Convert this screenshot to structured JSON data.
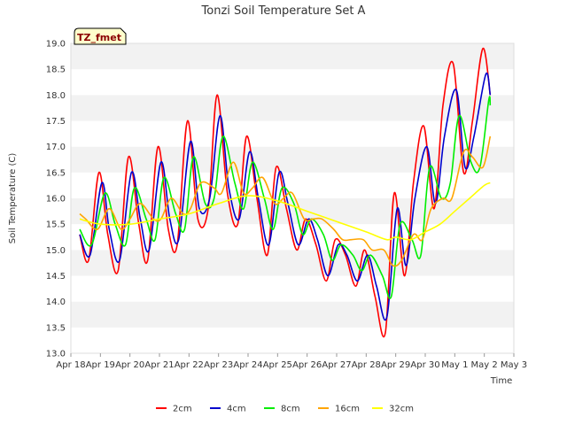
{
  "chart_data": {
    "type": "line",
    "title": "Tonzi Soil Temperature Set A",
    "xlabel": "Time",
    "ylabel": "Soil Temperature (C)",
    "badge": "TZ_fmet",
    "ylim": [
      13.0,
      19.0
    ],
    "yticks": [
      13.0,
      13.5,
      14.0,
      14.5,
      15.0,
      15.5,
      16.0,
      16.5,
      17.0,
      17.5,
      18.0,
      18.5,
      19.0
    ],
    "ytick_labels": [
      "13.0",
      "13.5",
      "14.0",
      "14.5",
      "15.0",
      "15.5",
      "16.0",
      "16.5",
      "17.0",
      "17.5",
      "18.0",
      "18.5",
      "19.0"
    ],
    "xlim": [
      0,
      15
    ],
    "xticks": [
      0,
      1,
      2,
      3,
      4,
      5,
      6,
      7,
      8,
      9,
      10,
      11,
      12,
      13,
      14,
      15
    ],
    "xtick_labels": [
      "Apr 18",
      "Apr 19",
      "Apr 20",
      "Apr 21",
      "Apr 22",
      "Apr 23",
      "Apr 24",
      "Apr 25",
      "Apr 26",
      "Apr 27",
      "Apr 28",
      "Apr 29",
      "Apr 30",
      "May 1",
      "May 2",
      "May 3"
    ],
    "grid": "horizontal bands",
    "legend_position": "bottom-center",
    "series": [
      {
        "name": "2cm",
        "color": "#ff0000",
        "x": [
          0.3,
          0.6,
          0.95,
          1.25,
          1.6,
          1.95,
          2.3,
          2.6,
          2.95,
          3.3,
          3.6,
          3.95,
          4.3,
          4.65,
          4.95,
          5.3,
          5.65,
          5.95,
          6.3,
          6.65,
          6.95,
          7.3,
          7.65,
          7.95,
          8.3,
          8.65,
          8.95,
          9.3,
          9.65,
          9.95,
          10.3,
          10.65,
          10.95,
          11.3,
          11.6,
          11.95,
          12.3,
          12.6,
          12.95,
          13.3,
          13.6,
          13.95,
          14.2
        ],
        "y": [
          15.3,
          14.8,
          16.5,
          15.3,
          14.6,
          16.8,
          15.5,
          14.8,
          17.0,
          15.4,
          15.1,
          17.5,
          15.6,
          15.8,
          18.0,
          16.1,
          15.5,
          17.2,
          16.0,
          14.9,
          16.6,
          15.8,
          15.0,
          15.6,
          15.1,
          14.4,
          15.2,
          14.9,
          14.3,
          15.0,
          14.1,
          13.4,
          16.1,
          14.5,
          16.3,
          17.4,
          15.8,
          17.8,
          18.6,
          16.5,
          17.5,
          18.9,
          18.0
        ]
      },
      {
        "name": "4cm",
        "color": "#0000cc",
        "x": [
          0.3,
          0.65,
          1.05,
          1.3,
          1.65,
          2.05,
          2.35,
          2.65,
          3.05,
          3.35,
          3.65,
          4.05,
          4.35,
          4.7,
          5.05,
          5.35,
          5.7,
          6.05,
          6.35,
          6.7,
          7.05,
          7.35,
          7.7,
          8.05,
          8.35,
          8.7,
          9.05,
          9.35,
          9.7,
          10.05,
          10.35,
          10.7,
          11.05,
          11.35,
          11.65,
          12.05,
          12.35,
          12.65,
          13.05,
          13.35,
          13.65,
          14.05,
          14.2
        ],
        "y": [
          15.3,
          14.9,
          16.3,
          15.4,
          14.8,
          16.5,
          15.6,
          15.0,
          16.7,
          15.6,
          15.2,
          17.1,
          15.8,
          16.0,
          17.6,
          16.2,
          15.6,
          16.9,
          16.0,
          15.1,
          16.5,
          15.9,
          15.1,
          15.6,
          15.2,
          14.5,
          15.1,
          14.9,
          14.4,
          14.9,
          14.3,
          13.7,
          15.8,
          14.7,
          16.0,
          17.0,
          15.9,
          17.2,
          18.1,
          16.6,
          17.2,
          18.4,
          18.0
        ]
      },
      {
        "name": "8cm",
        "color": "#00ee00",
        "x": [
          0.3,
          0.7,
          1.15,
          1.5,
          1.85,
          2.15,
          2.55,
          2.85,
          3.15,
          3.55,
          3.85,
          4.15,
          4.55,
          4.85,
          5.15,
          5.55,
          5.85,
          6.15,
          6.55,
          6.85,
          7.15,
          7.55,
          7.85,
          8.15,
          8.55,
          8.85,
          9.15,
          9.55,
          9.85,
          10.15,
          10.55,
          10.85,
          11.15,
          11.55,
          11.85,
          12.15,
          12.55,
          12.85,
          13.15,
          13.55,
          13.85,
          14.15,
          14.2
        ],
        "y": [
          15.4,
          15.1,
          16.1,
          15.5,
          15.1,
          16.2,
          15.6,
          15.2,
          16.4,
          15.7,
          15.4,
          16.8,
          15.9,
          16.0,
          17.2,
          16.3,
          15.8,
          16.7,
          16.0,
          15.4,
          16.2,
          15.9,
          15.3,
          15.6,
          15.3,
          14.8,
          15.1,
          14.9,
          14.6,
          14.9,
          14.5,
          14.1,
          15.5,
          15.2,
          14.9,
          16.6,
          16.0,
          16.3,
          17.6,
          16.7,
          16.6,
          17.9,
          17.8
        ]
      },
      {
        "name": "16cm",
        "color": "#ffa500",
        "x": [
          0.3,
          0.5,
          0.9,
          1.3,
          1.7,
          2.0,
          2.35,
          2.8,
          3.05,
          3.4,
          3.8,
          4.05,
          4.4,
          4.85,
          5.1,
          5.5,
          5.85,
          6.15,
          6.5,
          6.9,
          7.2,
          7.5,
          7.9,
          8.2,
          8.5,
          8.9,
          9.2,
          9.5,
          9.9,
          10.2,
          10.6,
          10.9,
          11.2,
          11.6,
          11.9,
          12.2,
          12.6,
          12.9,
          13.3,
          13.6,
          13.95,
          14.2
        ],
        "y": [
          15.7,
          15.6,
          15.4,
          15.8,
          15.4,
          15.6,
          15.9,
          15.6,
          15.6,
          16.0,
          15.7,
          15.8,
          16.3,
          16.2,
          16.1,
          16.7,
          16.1,
          16.2,
          16.4,
          15.9,
          16.0,
          16.1,
          15.6,
          15.6,
          15.6,
          15.4,
          15.2,
          15.2,
          15.2,
          15.0,
          15.0,
          14.7,
          14.8,
          15.3,
          15.2,
          15.8,
          16.0,
          16.0,
          16.9,
          16.8,
          16.6,
          17.2
        ]
      },
      {
        "name": "32cm",
        "color": "#ffff00",
        "x": [
          0.3,
          1.0,
          2.0,
          3.0,
          4.0,
          5.0,
          6.0,
          7.0,
          8.0,
          9.0,
          10.0,
          10.7,
          11.0,
          11.5,
          12.0,
          12.5,
          13.0,
          13.5,
          14.0,
          14.2
        ],
        "y": [
          15.6,
          15.5,
          15.5,
          15.6,
          15.7,
          15.9,
          16.05,
          15.95,
          15.75,
          15.55,
          15.35,
          15.2,
          15.25,
          15.2,
          15.35,
          15.5,
          15.75,
          16.0,
          16.25,
          16.3
        ]
      }
    ]
  }
}
